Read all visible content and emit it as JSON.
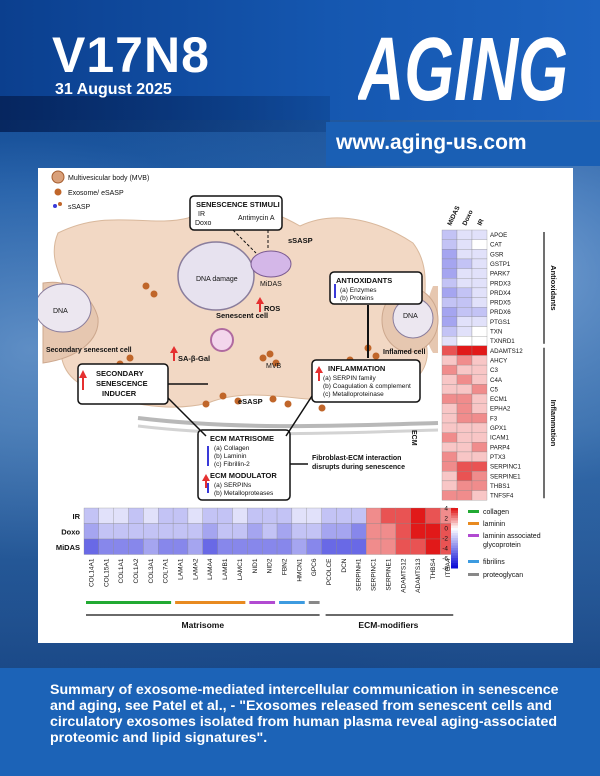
{
  "cover": {
    "issue": "V17N8",
    "date": "31 August 2025",
    "logo_text": "AGING",
    "url": "www.aging-us.com",
    "caption": "Summary of exosome-mediated intercellular communication in senescence and aging, see  Patel et al., - \"Exosomes released from senescent cells and circulatory exosomes isolated from human plasma reveal aging-associated proteomic and lipid signatures\".",
    "colors": {
      "band": "#1c63b7",
      "header": "#0b3f8e",
      "up": "#e53030",
      "down": "#3a3ad8"
    }
  },
  "schematic": {
    "legend": {
      "mvb": "Multivesicular body (MVB)",
      "exosome": "Exosome/ eSASP",
      "ssasp": "sSASP"
    },
    "stimuli": {
      "title": "SENESCENCE STIMULI",
      "ir": "IR",
      "doxo": "Doxo",
      "antimycin": "Antimycin A"
    },
    "ssasp_label": "sSASP",
    "dna_damage": "DNA damage",
    "midas": "MiDAS",
    "dna_left": "DNA",
    "dna_right": "DNA",
    "secondary_cell": "Secondary senescent cell",
    "senescent_cell": "Senescent cell",
    "sa_gal": "SA-β-Gal",
    "ros": "ROS",
    "mvb": "MVB",
    "esasp": "eSASP",
    "inflamed_cell": "Inflamed cell",
    "ecm": "ECM",
    "antioxidants": {
      "title": "ANTIOXIDANTS",
      "a": "(a)  Enzymes",
      "b": "(b)  Proteins"
    },
    "inducer": {
      "line1": "SECONDARY",
      "line2": "SENESCENCE",
      "line3": "INDUCER"
    },
    "inflammation": {
      "title": "INFLAMMATION",
      "a": "(a) SERPIN family",
      "b": "(b) Coagulation & complement",
      "c": "(c) Metalloproteinase"
    },
    "matrisome": {
      "title": "ECM MATRISOME",
      "a": "(a)  Collagen",
      "b": "(b)  Laminin",
      "c": "(c)  Fibrillin-2"
    },
    "modulator": {
      "title": "ECM MODULATOR",
      "a": "(a)  SERPINs",
      "b": "(b)  Metalloproteases"
    },
    "fibroblast": {
      "line1": "Fibroblast-ECM interaction",
      "line2": "disrupts during senescence"
    }
  },
  "chart_data": [
    {
      "type": "heatmap",
      "title": "",
      "columns": [
        "MiDAS",
        "Doxo",
        "IR"
      ],
      "rows": [
        "APOE",
        "CAT",
        "GSR",
        "GSTP1",
        "PARK7",
        "PRDX3",
        "PRDX4",
        "PRDX5",
        "PRDX6",
        "PTGS1",
        "TXN",
        "TXNRD1",
        "ADAMTS12",
        "AHCY",
        "C3",
        "C4A",
        "C5",
        "ECM1",
        "EPHA2",
        "F3",
        "GPX1",
        "ICAM1",
        "PARP4",
        "PTX3",
        "SERPINC1",
        "SERPINE1",
        "THBS1",
        "TNFSF4"
      ],
      "values": [
        [
          -2,
          -1,
          -1
        ],
        [
          -2,
          -1,
          0
        ],
        [
          -3,
          -1,
          -1
        ],
        [
          -3,
          -2,
          -1
        ],
        [
          -3,
          -1,
          -1
        ],
        [
          -2,
          -1,
          -1
        ],
        [
          -3,
          -2,
          -1
        ],
        [
          -2,
          -2,
          -1
        ],
        [
          -3,
          -2,
          -2
        ],
        [
          -3,
          -1,
          -1
        ],
        [
          -2,
          -1,
          0
        ],
        [
          -1,
          0,
          0
        ],
        [
          3,
          4,
          4
        ],
        [
          1,
          2,
          1
        ],
        [
          2,
          1,
          1
        ],
        [
          1,
          2,
          1
        ],
        [
          1,
          1,
          2
        ],
        [
          2,
          2,
          1
        ],
        [
          1,
          2,
          1
        ],
        [
          1,
          2,
          2
        ],
        [
          1,
          1,
          1
        ],
        [
          2,
          1,
          1
        ],
        [
          1,
          1,
          2
        ],
        [
          2,
          1,
          1
        ],
        [
          2,
          3,
          3
        ],
        [
          1,
          3,
          2
        ],
        [
          1,
          2,
          2
        ],
        [
          2,
          2,
          1
        ]
      ],
      "groups": [
        {
          "name": "Antioxidants",
          "rows": [
            0,
            11
          ]
        },
        {
          "name": "Inflammation",
          "rows": [
            12,
            27
          ]
        }
      ]
    },
    {
      "type": "heatmap",
      "rows": [
        "IR",
        "Doxo",
        "MiDAS"
      ],
      "columns": [
        "COL14A1",
        "COL15A1",
        "COL1A1",
        "COL1A2",
        "COL3A1",
        "COL7A1",
        "LAMA1",
        "LAMA2",
        "LAMA4",
        "LAMB1",
        "LAMC1",
        "NID1",
        "NID2",
        "FBN2",
        "HMCN1",
        "GPC6",
        "PCOLCE",
        "DCN",
        "SERPINH1",
        "SERPINC1",
        "SERPINE1",
        "ADAMTS12",
        "ADAMTS13",
        "THBS4",
        "ITGA4"
      ],
      "values": [
        [
          -2,
          -1,
          -1,
          -2,
          -1,
          -2,
          -2,
          -1,
          -2,
          -2,
          -1,
          -2,
          -2,
          -2,
          -1,
          -1,
          -2,
          -2,
          -2,
          2,
          3,
          3,
          4,
          3,
          2
        ],
        [
          -3,
          -2,
          -2,
          -2,
          -2,
          -2,
          -2,
          -2,
          -3,
          -2,
          -2,
          -3,
          -2,
          -3,
          -2,
          -2,
          -3,
          -3,
          -4,
          2,
          2,
          3,
          4,
          4,
          3
        ],
        [
          -5,
          -4,
          -4,
          -4,
          -3,
          -4,
          -4,
          -3,
          -5,
          -4,
          -4,
          -4,
          -4,
          -4,
          -3,
          -4,
          -5,
          -5,
          -5,
          2,
          2,
          3,
          3,
          4,
          3
        ]
      ],
      "scale": {
        "min": -8,
        "max": 4,
        "ticks": [
          4,
          2,
          0,
          -2,
          -4,
          -6,
          -8
        ]
      },
      "legend": [
        {
          "name": "collagen",
          "color": "#22aa33"
        },
        {
          "name": "laminin",
          "color": "#e88a20"
        },
        {
          "name": "laminin associated glycoprotein",
          "color": "#b14ad1"
        },
        {
          "name": "fibrilins",
          "color": "#3d9be0"
        },
        {
          "name": "proteoglycan",
          "color": "#888888"
        }
      ],
      "groups": [
        {
          "name": "Matrisome"
        },
        {
          "name": "ECM-modifiers"
        }
      ]
    }
  ]
}
